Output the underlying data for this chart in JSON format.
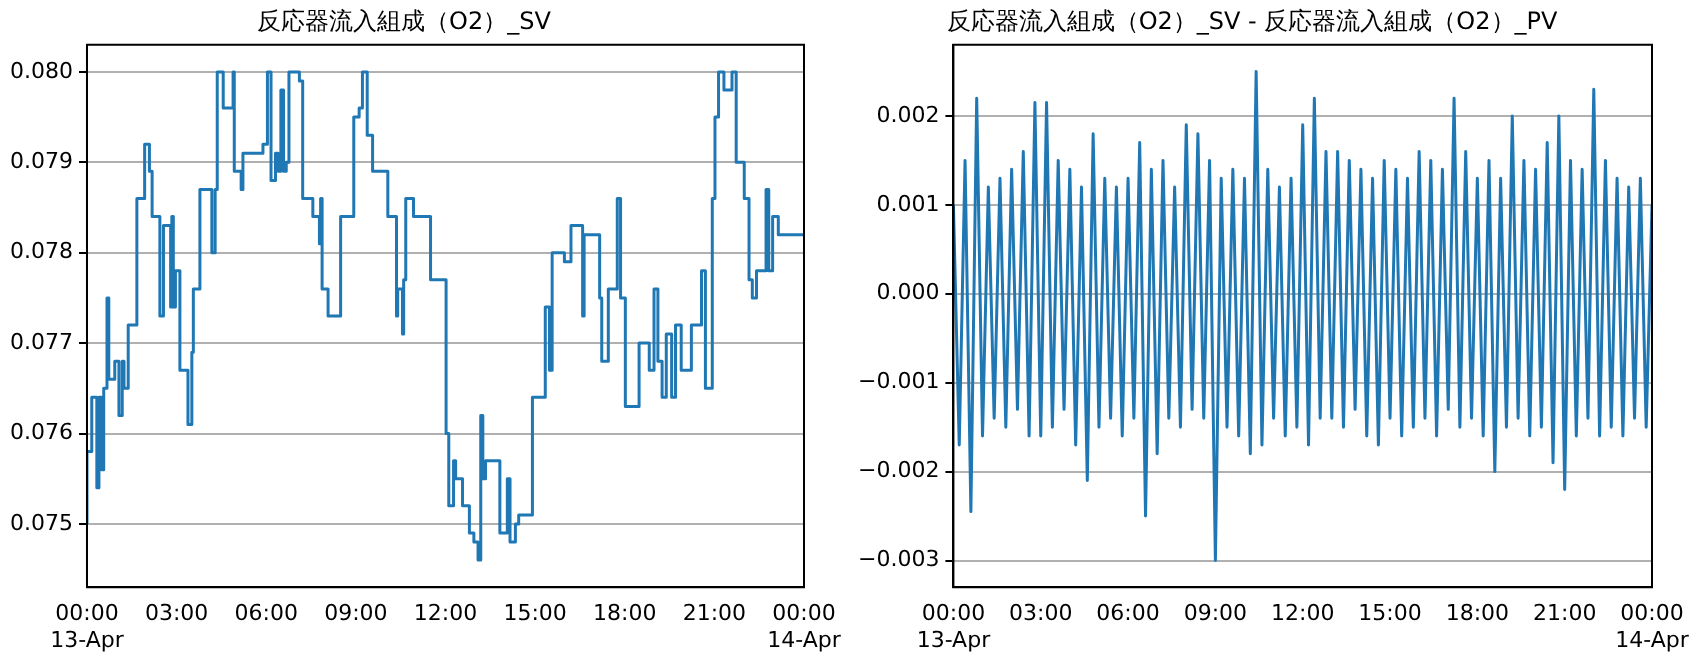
{
  "chart_data": [
    {
      "type": "step",
      "title": "反応器流入組成（O2）_SV",
      "x": [
        0,
        0.16,
        0.33,
        0.4,
        0.49,
        0.56,
        0.67,
        0.73,
        0.93,
        1.07,
        1.18,
        1.24,
        1.38,
        1.67,
        1.93,
        2.09,
        2.18,
        2.44,
        2.56,
        2.8,
        2.84,
        2.89,
        2.96,
        3.11,
        3.38,
        3.51,
        3.56,
        3.78,
        4.18,
        4.29,
        4.36,
        4.56,
        4.89,
        4.93,
        5.16,
        5.22,
        5.89,
        6.04,
        6.16,
        6.31,
        6.4,
        6.49,
        6.58,
        6.67,
        6.76,
        7.11,
        7.22,
        7.56,
        7.78,
        7.82,
        7.87,
        8.07,
        8.49,
        8.93,
        9.11,
        9.22,
        9.38,
        9.56,
        10.07,
        10.36,
        10.4,
        10.56,
        10.6,
        10.67,
        10.93,
        11.5,
        12.02,
        12.11,
        12.27,
        12.34,
        12.57,
        12.8,
        12.95,
        13.09,
        13.18,
        13.25,
        13.34,
        13.82,
        14.07,
        14.16,
        14.34,
        14.45,
        14.91,
        15.34,
        15.48,
        15.57,
        15.98,
        16.2,
        16.59,
        16.64,
        17.16,
        17.23,
        17.45,
        17.75,
        17.86,
        18.02,
        18.48,
        18.82,
        18.98,
        19.11,
        19.25,
        19.39,
        19.57,
        19.7,
        19.89,
        20.23,
        20.57,
        20.7,
        20.93,
        21.02,
        21.14,
        21.32,
        21.59,
        21.73,
        22.0,
        22.16,
        22.27,
        22.41,
        22.73,
        22.82,
        22.95,
        23.14,
        24
      ],
      "series": [
        {
          "color": "#1f77b4",
          "values": [
            0.075,
            0.0758,
            0.0764,
            0.0754,
            0.0764,
            0.0756,
            0.0765,
            0.0775,
            0.0766,
            0.0768,
            0.0762,
            0.0768,
            0.0765,
            0.0772,
            0.0786,
            0.0792,
            0.0789,
            0.0784,
            0.0773,
            0.0783,
            0.0774,
            0.0784,
            0.0774,
            0.0778,
            0.0767,
            0.0761,
            0.0769,
            0.0776,
            0.0787,
            0.078,
            0.0787,
            0.08,
            0.0796,
            0.08,
            0.0789,
            0.0787,
            0.0791,
            0.0792,
            0.08,
            0.0788,
            0.0791,
            0.0789,
            0.0798,
            0.0789,
            0.079,
            0.08,
            0.0799,
            0.0786,
            0.0784,
            0.0781,
            0.0786,
            0.0776,
            0.0773,
            0.0784,
            0.0795,
            0.0796,
            0.08,
            0.0793,
            0.0789,
            0.0784,
            0.0773,
            0.0776,
            0.0771,
            0.0777,
            0.0786,
            0.0784,
            0.0777,
            0.076,
            0.0752,
            0.0757,
            0.0755,
            0.0752,
            0.0749,
            0.0748,
            0.0746,
            0.0762,
            0.0755,
            0.0757,
            0.0749,
            0.0755,
            0.0748,
            0.075,
            0.0751,
            0.0764,
            0.0774,
            0.0767,
            0.078,
            0.0779,
            0.0783,
            0.0773,
            0.0782,
            0.0775,
            0.0768,
            0.0776,
            0.0786,
            0.0775,
            0.0763,
            0.077,
            0.0767,
            0.0776,
            0.0768,
            0.0764,
            0.0771,
            0.0764,
            0.0772,
            0.0767,
            0.0772,
            0.0778,
            0.0765,
            0.0786,
            0.0795,
            0.08,
            0.0798,
            0.08,
            0.079,
            0.0786,
            0.0777,
            0.0775,
            0.0778,
            0.0787,
            0.0778,
            0.0784,
            0.0782
          ]
        }
      ],
      "xlim": [
        0,
        24
      ],
      "xticks": [
        {
          "value": 0,
          "label": "00:00\n13-Apr"
        },
        {
          "value": 3,
          "label": "03:00"
        },
        {
          "value": 6,
          "label": "06:00"
        },
        {
          "value": 9,
          "label": "09:00"
        },
        {
          "value": 12,
          "label": "12:00"
        },
        {
          "value": 15,
          "label": "15:00"
        },
        {
          "value": 18,
          "label": "18:00"
        },
        {
          "value": 21,
          "label": "21:00"
        },
        {
          "value": 24,
          "label": "00:00\n14-Apr"
        }
      ],
      "ylim": [
        0.0743,
        0.0803
      ],
      "yticks": [
        {
          "value": 0.075,
          "label": "0.075"
        },
        {
          "value": 0.076,
          "label": "0.076"
        },
        {
          "value": 0.077,
          "label": "0.077"
        },
        {
          "value": 0.078,
          "label": "0.078"
        },
        {
          "value": 0.079,
          "label": "0.079"
        },
        {
          "value": 0.08,
          "label": "0.080"
        }
      ],
      "grid": "y",
      "legend": false
    },
    {
      "type": "line",
      "title": "反応器流入組成（O2）_SV - 反応器流入組成（O2）_PV",
      "x": [
        0,
        0.2,
        0.4,
        0.6,
        0.8,
        1,
        1.2,
        1.4,
        1.6,
        1.8,
        2,
        2.2,
        2.4,
        2.6,
        2.8,
        3,
        3.2,
        3.4,
        3.6,
        3.8,
        4,
        4.2,
        4.4,
        4.6,
        4.8,
        5,
        5.2,
        5.4,
        5.6,
        5.8,
        6,
        6.2,
        6.4,
        6.6,
        6.8,
        7,
        7.2,
        7.4,
        7.6,
        7.8,
        8,
        8.2,
        8.4,
        8.6,
        8.8,
        9,
        9.2,
        9.4,
        9.6,
        9.8,
        10,
        10.2,
        10.4,
        10.6,
        10.8,
        11,
        11.2,
        11.4,
        11.6,
        11.8,
        12,
        12.2,
        12.4,
        12.6,
        12.8,
        13,
        13.2,
        13.4,
        13.6,
        13.8,
        14,
        14.2,
        14.4,
        14.6,
        14.8,
        15,
        15.2,
        15.4,
        15.6,
        15.8,
        16,
        16.2,
        16.4,
        16.6,
        16.8,
        17,
        17.2,
        17.4,
        17.6,
        17.8,
        18,
        18.2,
        18.4,
        18.6,
        18.8,
        19,
        19.2,
        19.4,
        19.6,
        19.8,
        20,
        20.2,
        20.4,
        20.6,
        20.8,
        21,
        21.2,
        21.4,
        21.6,
        21.8,
        22,
        22.2,
        22.4,
        22.6,
        22.8,
        23,
        23.2,
        23.4,
        23.6,
        23.8,
        24
      ],
      "series": [
        {
          "color": "#1f77b4",
          "values": [
            0.001,
            -0.0017,
            0.0015,
            -0.00245,
            0.0022,
            -0.0016,
            0.0012,
            -0.0014,
            0.0013,
            -0.0015,
            0.0014,
            -0.0013,
            0.0016,
            -0.0016,
            0.00215,
            -0.0016,
            0.00215,
            -0.0015,
            0.0015,
            -0.0013,
            0.0014,
            -0.0017,
            0.0012,
            -0.0021,
            0.0018,
            -0.0015,
            0.0013,
            -0.0014,
            0.0012,
            -0.0016,
            0.0013,
            -0.0014,
            0.0017,
            -0.0025,
            0.0014,
            -0.0018,
            0.0015,
            -0.0014,
            0.0012,
            -0.0015,
            0.0019,
            -0.0013,
            0.0018,
            -0.0014,
            0.0015,
            -0.003,
            0.0013,
            -0.0015,
            0.0014,
            -0.0016,
            0.0013,
            -0.0018,
            0.0025,
            -0.0017,
            0.0014,
            -0.0014,
            0.0012,
            -0.0016,
            0.0013,
            -0.0015,
            0.0019,
            -0.0017,
            0.0022,
            -0.0014,
            0.0016,
            -0.0014,
            0.0016,
            -0.0015,
            0.0015,
            -0.0013,
            0.0014,
            -0.0016,
            0.0013,
            -0.0017,
            0.0015,
            -0.0014,
            0.0014,
            -0.0016,
            0.0013,
            -0.0015,
            0.0016,
            -0.0014,
            0.0015,
            -0.0016,
            0.0014,
            -0.0013,
            0.0022,
            -0.0015,
            0.0016,
            -0.0014,
            0.0013,
            -0.0016,
            0.0015,
            -0.002,
            0.0013,
            -0.0015,
            0.002,
            -0.0014,
            0.0015,
            -0.0016,
            0.0014,
            -0.0015,
            0.0017,
            -0.0019,
            0.002,
            -0.0022,
            0.0015,
            -0.0016,
            0.0014,
            -0.0014,
            0.0023,
            -0.0016,
            0.0015,
            -0.0015,
            0.0013,
            -0.0016,
            0.0012,
            -0.0014,
            0.0013,
            -0.0015,
            0.001
          ]
        }
      ],
      "xlim": [
        0,
        24
      ],
      "xticks": [
        {
          "value": 0,
          "label": "00:00\n13-Apr"
        },
        {
          "value": 3,
          "label": "03:00"
        },
        {
          "value": 6,
          "label": "06:00"
        },
        {
          "value": 9,
          "label": "09:00"
        },
        {
          "value": 12,
          "label": "12:00"
        },
        {
          "value": 15,
          "label": "15:00"
        },
        {
          "value": 18,
          "label": "18:00"
        },
        {
          "value": 21,
          "label": "21:00"
        },
        {
          "value": 24,
          "label": "00:00\n14-Apr"
        }
      ],
      "ylim": [
        -0.0033,
        0.0028
      ],
      "yticks": [
        {
          "value": -0.003,
          "label": "−0.003"
        },
        {
          "value": -0.002,
          "label": "−0.002"
        },
        {
          "value": -0.001,
          "label": "−0.001"
        },
        {
          "value": 0,
          "label": "0.000"
        },
        {
          "value": 0.001,
          "label": "0.001"
        },
        {
          "value": 0.002,
          "label": "0.002"
        }
      ],
      "grid": "y",
      "legend": false
    }
  ]
}
